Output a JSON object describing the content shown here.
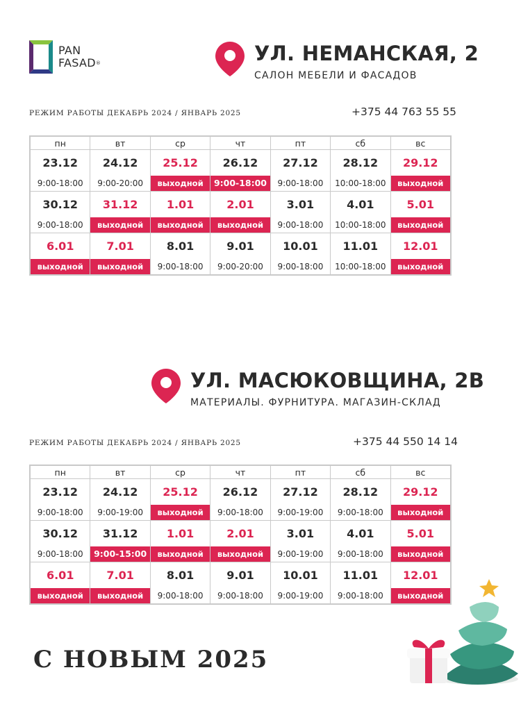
{
  "logo": {
    "line1": "PAN",
    "line2": "FASAD",
    "reg": "®"
  },
  "weekdays": [
    "пн",
    "вт",
    "ср",
    "чт",
    "пт",
    "сб",
    "вс"
  ],
  "store1": {
    "address": "УЛ. НЕМАНСКАЯ, 2",
    "subtitle": "САЛОН МЕБЕЛИ И ФАСАДОВ",
    "mode": "РЕЖИМ РАБОТЫ ДЕКАБРЬ 2024 / ЯНВАРЬ 2025",
    "phone": "+375 44 763 55 55",
    "weeks": [
      [
        {
          "d": "23.12",
          "t": "9:00-18:00",
          "s": ""
        },
        {
          "d": "24.12",
          "t": "9:00-20:00",
          "s": ""
        },
        {
          "d": "25.12",
          "t": "выходной",
          "s": "off"
        },
        {
          "d": "26.12",
          "t": "9:00-18:00",
          "s": "hi"
        },
        {
          "d": "27.12",
          "t": "9:00-18:00",
          "s": ""
        },
        {
          "d": "28.12",
          "t": "10:00-18:00",
          "s": ""
        },
        {
          "d": "29.12",
          "t": "выходной",
          "s": "off"
        }
      ],
      [
        {
          "d": "30.12",
          "t": "9:00-18:00",
          "s": ""
        },
        {
          "d": "31.12",
          "t": "выходной",
          "s": "off"
        },
        {
          "d": "1.01",
          "t": "выходной",
          "s": "off"
        },
        {
          "d": "2.01",
          "t": "выходной",
          "s": "off"
        },
        {
          "d": "3.01",
          "t": "9:00-18:00",
          "s": ""
        },
        {
          "d": "4.01",
          "t": "10:00-18:00",
          "s": ""
        },
        {
          "d": "5.01",
          "t": "выходной",
          "s": "off"
        }
      ],
      [
        {
          "d": "6.01",
          "t": "выходной",
          "s": "off"
        },
        {
          "d": "7.01",
          "t": "выходной",
          "s": "off"
        },
        {
          "d": "8.01",
          "t": "9:00-18:00",
          "s": ""
        },
        {
          "d": "9.01",
          "t": "9:00-20:00",
          "s": ""
        },
        {
          "d": "10.01",
          "t": "9:00-18:00",
          "s": ""
        },
        {
          "d": "11.01",
          "t": "10:00-18:00",
          "s": ""
        },
        {
          "d": "12.01",
          "t": "выходной",
          "s": "off"
        }
      ]
    ]
  },
  "store2": {
    "address": "УЛ. МАСЮКОВЩИНА, 2В",
    "subtitle": "МАТЕРИАЛЫ. ФУРНИТУРА. МАГАЗИН-СКЛАД",
    "mode": "РЕЖИМ РАБОТЫ ДЕКАБРЬ 2024 / ЯНВАРЬ 2025",
    "phone": "+375 44 550 14 14",
    "weeks": [
      [
        {
          "d": "23.12",
          "t": "9:00-18:00",
          "s": ""
        },
        {
          "d": "24.12",
          "t": "9:00-19:00",
          "s": ""
        },
        {
          "d": "25.12",
          "t": "выходной",
          "s": "off"
        },
        {
          "d": "26.12",
          "t": "9:00-18:00",
          "s": ""
        },
        {
          "d": "27.12",
          "t": "9:00-19:00",
          "s": ""
        },
        {
          "d": "28.12",
          "t": "9:00-18:00",
          "s": ""
        },
        {
          "d": "29.12",
          "t": "выходной",
          "s": "off"
        }
      ],
      [
        {
          "d": "30.12",
          "t": "9:00-18:00",
          "s": ""
        },
        {
          "d": "31.12",
          "t": "9:00-15:00",
          "s": "hi"
        },
        {
          "d": "1.01",
          "t": "выходной",
          "s": "off"
        },
        {
          "d": "2.01",
          "t": "выходной",
          "s": "off"
        },
        {
          "d": "3.01",
          "t": "9:00-19:00",
          "s": ""
        },
        {
          "d": "4.01",
          "t": "9:00-18:00",
          "s": ""
        },
        {
          "d": "5.01",
          "t": "выходной",
          "s": "off"
        }
      ],
      [
        {
          "d": "6.01",
          "t": "выходной",
          "s": "off"
        },
        {
          "d": "7.01",
          "t": "выходной",
          "s": "off"
        },
        {
          "d": "8.01",
          "t": "9:00-18:00",
          "s": ""
        },
        {
          "d": "9.01",
          "t": "9:00-18:00",
          "s": ""
        },
        {
          "d": "10.01",
          "t": "9:00-19:00",
          "s": ""
        },
        {
          "d": "11.01",
          "t": "9:00-18:00",
          "s": ""
        },
        {
          "d": "12.01",
          "t": "выходной",
          "s": "off"
        }
      ]
    ]
  },
  "greeting": "С НОВЫМ 2025",
  "colors": {
    "accent": "#dc2552",
    "text": "#2b2b2b",
    "grid": "#c9c9c9"
  },
  "icons": [
    "location-pin-icon",
    "christmas-tree-icon",
    "gift-box-icon"
  ]
}
